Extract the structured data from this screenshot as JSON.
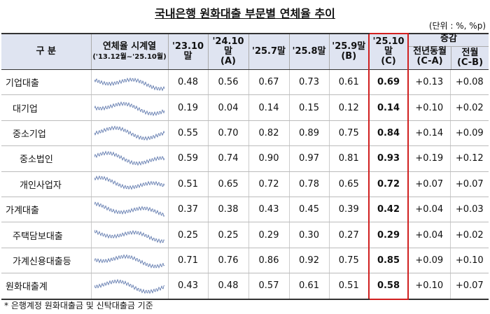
{
  "header": {
    "title": "국내은행 원화대출 부문별 연체율 추이",
    "unit": "(단위 : %, %p)"
  },
  "table": {
    "columns": [
      "구 분",
      "연체율 시계열",
      "('13.12월~'25.10월)",
      "'23.10말",
      "'24.10말",
      "(A)",
      "'25.7말",
      "'25.8말",
      "'25.9말",
      "(B)",
      "'25.10말",
      "(C)",
      "증감",
      "전년동월",
      "(C-A)",
      "전월",
      "(C-B)"
    ],
    "rows": [
      [
        "기업대출",
        "0.48",
        "0.56",
        "0.67",
        "0.73",
        "0.61",
        "0.69",
        "+0.13",
        "+0.08"
      ],
      [
        "대기업",
        "0.19",
        "0.04",
        "0.14",
        "0.15",
        "0.12",
        "0.14",
        "+0.10",
        "+0.02"
      ],
      [
        "중소기업",
        "0.55",
        "0.70",
        "0.82",
        "0.89",
        "0.75",
        "0.84",
        "+0.14",
        "+0.09"
      ],
      [
        "중소법인",
        "0.59",
        "0.74",
        "0.90",
        "0.97",
        "0.81",
        "0.93",
        "+0.19",
        "+0.12"
      ],
      [
        "개인사업자",
        "0.51",
        "0.65",
        "0.72",
        "0.78",
        "0.65",
        "0.72",
        "+0.07",
        "+0.07"
      ],
      [
        "가계대출",
        "0.37",
        "0.38",
        "0.43",
        "0.45",
        "0.39",
        "0.42",
        "+0.04",
        "+0.03"
      ],
      [
        "주택담보대출",
        "0.25",
        "0.25",
        "0.29",
        "0.30",
        "0.27",
        "0.29",
        "+0.04",
        "+0.02"
      ],
      [
        "가계신용대출등",
        "0.71",
        "0.76",
        "0.86",
        "0.92",
        "0.75",
        "0.85",
        "+0.09",
        "+0.10"
      ],
      [
        "원화대출계",
        "0.43",
        "0.48",
        "0.57",
        "0.61",
        "0.51",
        "0.58",
        "+0.10",
        "+0.07"
      ]
    ]
  },
  "footnote": "* 은행계정 원화대출금 및 신탁대출금 기준"
}
